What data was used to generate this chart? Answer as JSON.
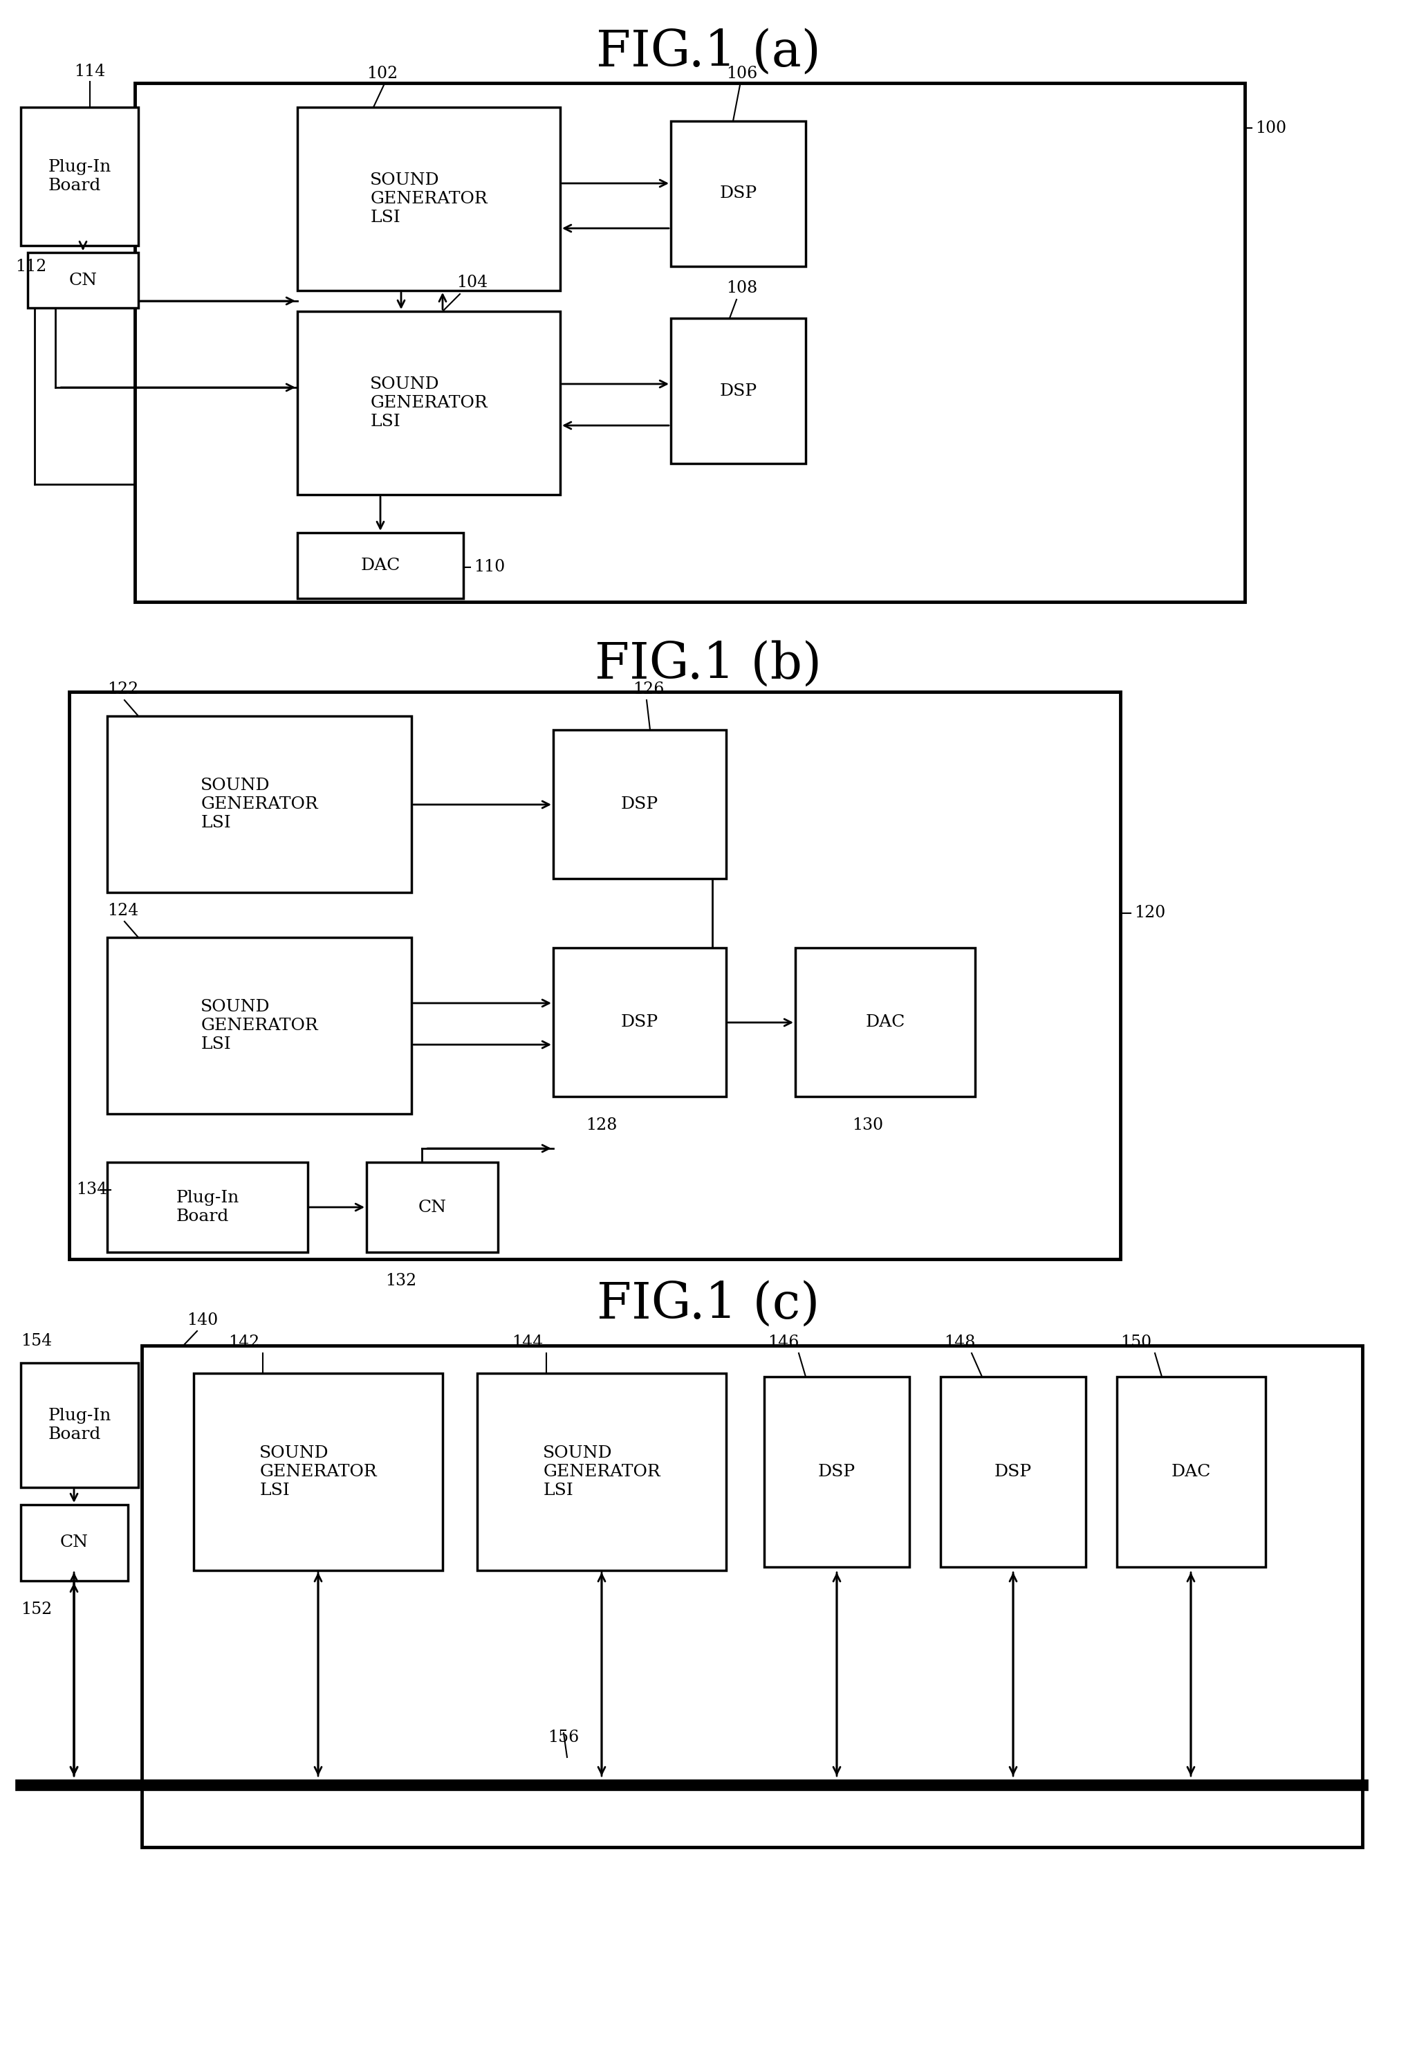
{
  "bg_color": "#ffffff",
  "title_a": "FIG.1 (a)",
  "title_b": "FIG.1 (b)",
  "title_c": "FIG.1 (c)",
  "fig_width": 20.49,
  "fig_height": 29.56
}
